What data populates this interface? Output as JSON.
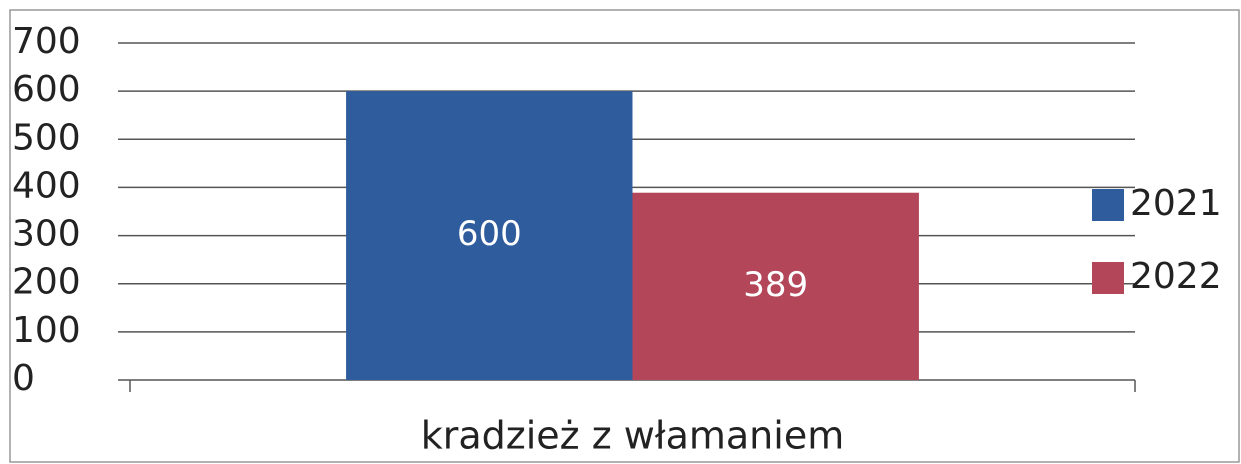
{
  "chart_data": {
    "type": "bar",
    "categories": [
      "kradzież z włamaniem"
    ],
    "series": [
      {
        "name": "2021",
        "color": "#2f5c9c",
        "values": [
          600
        ]
      },
      {
        "name": "2022",
        "color": "#b4465a",
        "values": [
          389
        ]
      }
    ],
    "ylim": [
      0,
      700
    ],
    "yticks": [
      0,
      100,
      200,
      300,
      400,
      500,
      600,
      700
    ],
    "grid": true,
    "legend": "right",
    "data_labels": true
  }
}
